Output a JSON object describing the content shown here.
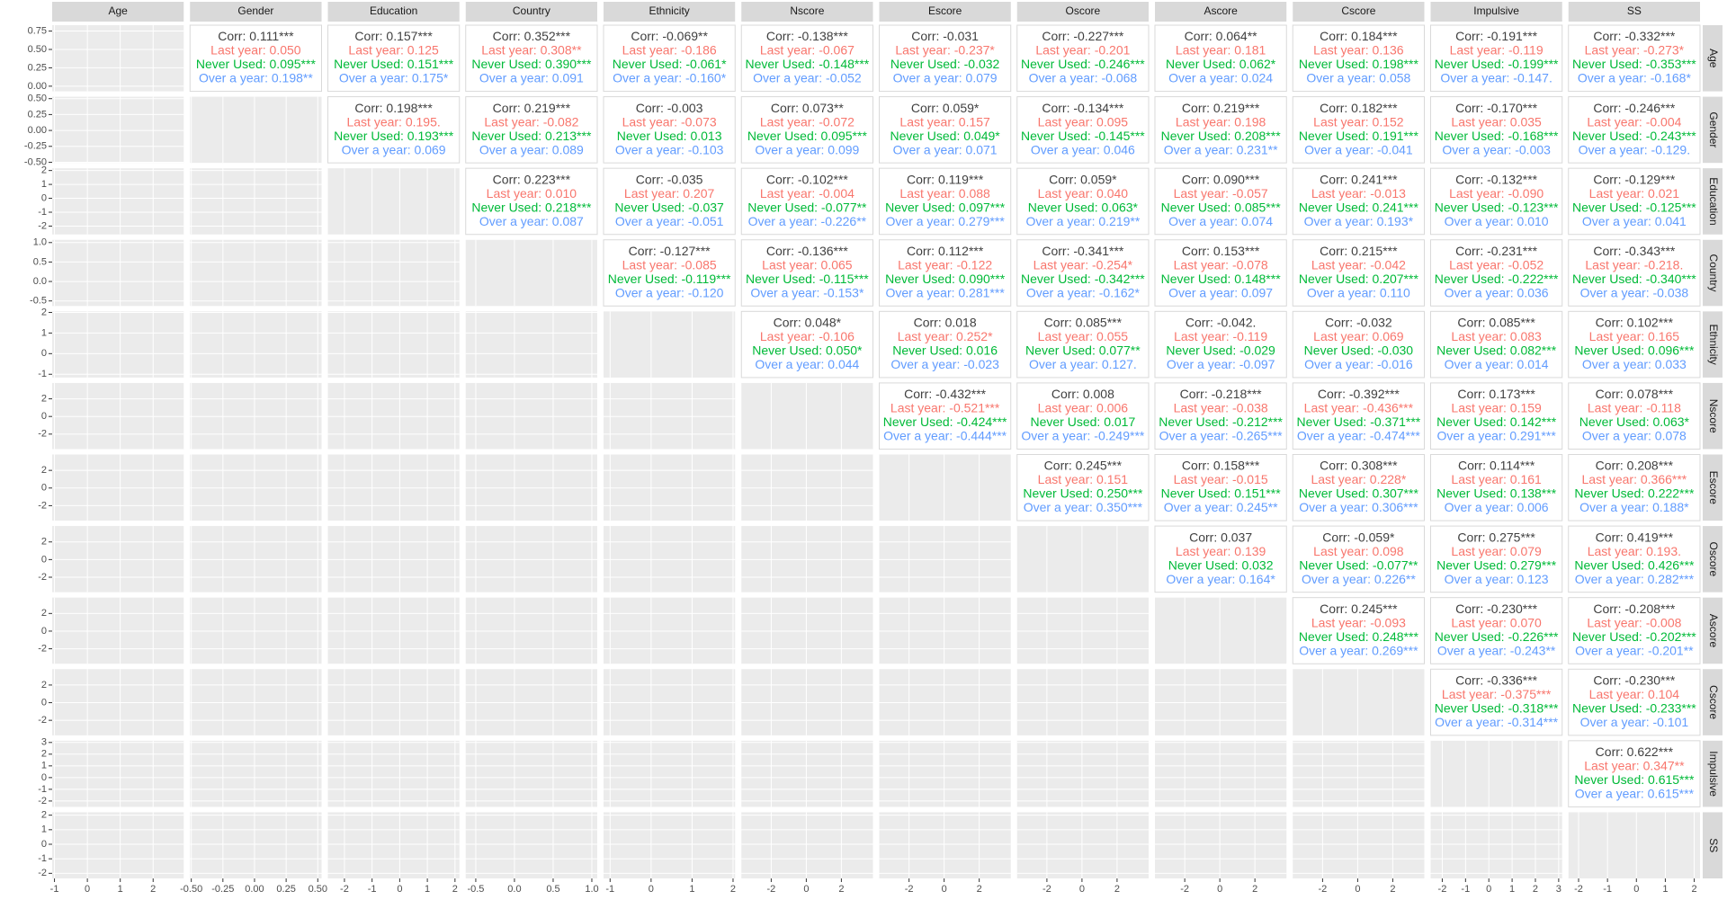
{
  "chart_data": {
    "type": "pairs",
    "line_colors": [
      "#404040",
      "#F8766D",
      "#00BA38",
      "#619CFF"
    ],
    "variables": [
      {
        "name": "Age",
        "lim": [
          -1.07,
          2.93
        ],
        "ticks": [
          -1,
          0,
          1,
          2
        ],
        "density_lim": [
          -0.07,
          0.83
        ],
        "density_ticks": [
          {
            "value": 0,
            "label": "0.00"
          },
          {
            "value": 0.25,
            "label": "0.25"
          },
          {
            "value": 0.5,
            "label": "0.50"
          },
          {
            "value": 0.75,
            "label": "0.75"
          }
        ]
      },
      {
        "name": "Gender",
        "lim": [
          -0.51,
          0.53
        ],
        "ticks": [
          {
            "value": -0.5,
            "label": "-0.50"
          },
          {
            "value": -0.25,
            "label": "-0.25"
          },
          {
            "value": 0,
            "label": "0.00"
          },
          {
            "value": 0.25,
            "label": "0.25"
          },
          {
            "value": 0.5,
            "label": "0.50"
          }
        ]
      },
      {
        "name": "Education",
        "lim": [
          -2.6,
          2.16
        ],
        "ticks": [
          -2,
          -1,
          0,
          1,
          2
        ]
      },
      {
        "name": "Country",
        "lim": [
          -0.63,
          1.07
        ],
        "ticks": [
          -0.5,
          {
            "value": 0,
            "label": "0.0"
          },
          0.5,
          {
            "value": 1,
            "label": "1.0"
          }
        ]
      },
      {
        "name": "Ethnicity",
        "lim": [
          -1.16,
          2.05
        ],
        "ticks": [
          -1,
          0,
          1,
          2
        ]
      },
      {
        "name": "Nscore",
        "lim": [
          -3.7,
          3.8
        ],
        "ticks": [
          -2,
          0,
          2
        ]
      },
      {
        "name": "Escore",
        "lim": [
          -3.7,
          3.8
        ],
        "ticks": [
          -2,
          0,
          2
        ]
      },
      {
        "name": "Oscore",
        "lim": [
          -3.7,
          3.8
        ],
        "ticks": [
          -2,
          0,
          2
        ]
      },
      {
        "name": "Ascore",
        "lim": [
          -3.7,
          3.8
        ],
        "ticks": [
          -2,
          0,
          2
        ]
      },
      {
        "name": "Cscore",
        "lim": [
          -3.7,
          3.8
        ],
        "ticks": [
          -2,
          0,
          2
        ]
      },
      {
        "name": "Impulsive",
        "lim": [
          -2.5,
          3.15
        ],
        "ticks": [
          -2,
          -1,
          0,
          1,
          2,
          3
        ]
      },
      {
        "name": "SS",
        "lim": [
          -2.35,
          2.2
        ],
        "ticks": [
          -2,
          -1,
          0,
          1,
          2
        ]
      }
    ],
    "upper": [
      [
        [
          "Corr: 0.111***",
          "Last year: 0.050",
          "Never Used: 0.095***",
          "Over a year: 0.198**"
        ],
        [
          "Corr: 0.157***",
          "Last year: 0.125",
          "Never Used: 0.151***",
          "Over a year: 0.175*"
        ],
        [
          "Corr: 0.352***",
          "Last year: 0.308**",
          "Never Used: 0.390***",
          "Over a year: 0.091"
        ],
        [
          "Corr: -0.069**",
          "Last year: -0.186",
          "Never Used: -0.061*",
          "Over a year: -0.160*"
        ],
        [
          "Corr: -0.138***",
          "Last year: -0.067",
          "Never Used: -0.148***",
          "Over a year: -0.052"
        ],
        [
          "Corr: -0.031",
          "Last year: -0.237*",
          "Never Used: -0.032",
          "Over a year: 0.079"
        ],
        [
          "Corr: -0.227***",
          "Last year: -0.201",
          "Never Used: -0.246***",
          "Over a year: -0.068"
        ],
        [
          "Corr: 0.064**",
          "Last year: 0.181",
          "Never Used: 0.062*",
          "Over a year: 0.024"
        ],
        [
          "Corr: 0.184***",
          "Last year: 0.136",
          "Never Used: 0.198***",
          "Over a year: 0.058"
        ],
        [
          "Corr: -0.191***",
          "Last year: -0.119",
          "Never Used: -0.199***",
          "Over a year: -0.147."
        ],
        [
          "Corr: -0.332***",
          "Last year: -0.273*",
          "Never Used: -0.353***",
          "Over a year: -0.168*"
        ]
      ],
      [
        [
          "Corr: 0.198***",
          "Last year: 0.195.",
          "Never Used: 0.193***",
          "Over a year: 0.069"
        ],
        [
          "Corr: 0.219***",
          "Last year: -0.082",
          "Never Used: 0.213***",
          "Over a year: 0.089"
        ],
        [
          "Corr: -0.003",
          "Last year: -0.073",
          "Never Used: 0.013",
          "Over a year: -0.103"
        ],
        [
          "Corr: 0.073**",
          "Last year: -0.072",
          "Never Used: 0.095***",
          "Over a year: 0.099"
        ],
        [
          "Corr: 0.059*",
          "Last year: 0.157",
          "Never Used: 0.049*",
          "Over a year: 0.071"
        ],
        [
          "Corr: -0.134***",
          "Last year: 0.095",
          "Never Used: -0.145***",
          "Over a year: 0.046"
        ],
        [
          "Corr: 0.219***",
          "Last year: 0.198",
          "Never Used: 0.208***",
          "Over a year: 0.231**"
        ],
        [
          "Corr: 0.182***",
          "Last year: 0.152",
          "Never Used: 0.191***",
          "Over a year: -0.041"
        ],
        [
          "Corr: -0.170***",
          "Last year: 0.035",
          "Never Used: -0.168***",
          "Over a year: -0.003"
        ],
        [
          "Corr: -0.246***",
          "Last year: -0.004",
          "Never Used: -0.243***",
          "Over a year: -0.129."
        ]
      ],
      [
        [
          "Corr: 0.223***",
          "Last year: 0.010",
          "Never Used: 0.218***",
          "Over a year: 0.087"
        ],
        [
          "Corr: -0.035",
          "Last year: 0.207",
          "Never Used: -0.037",
          "Over a year: -0.051"
        ],
        [
          "Corr: -0.102***",
          "Last year: -0.004",
          "Never Used: -0.077**",
          "Over a year: -0.226**"
        ],
        [
          "Corr: 0.119***",
          "Last year: 0.088",
          "Never Used: 0.097***",
          "Over a year: 0.279***"
        ],
        [
          "Corr: 0.059*",
          "Last year: 0.040",
          "Never Used: 0.063*",
          "Over a year: 0.219**"
        ],
        [
          "Corr: 0.090***",
          "Last year: -0.057",
          "Never Used: 0.085***",
          "Over a year: 0.074"
        ],
        [
          "Corr: 0.241***",
          "Last year: -0.013",
          "Never Used: 0.241***",
          "Over a year: 0.193*"
        ],
        [
          "Corr: -0.132***",
          "Last year: -0.090",
          "Never Used: -0.123***",
          "Over a year: 0.010"
        ],
        [
          "Corr: -0.129***",
          "Last year: 0.021",
          "Never Used: -0.125***",
          "Over a year: 0.041"
        ]
      ],
      [
        [
          "Corr: -0.127***",
          "Last year: -0.085",
          "Never Used: -0.119***",
          "Over a year: -0.120"
        ],
        [
          "Corr: -0.136***",
          "Last year: 0.065",
          "Never Used: -0.115***",
          "Over a year: -0.153*"
        ],
        [
          "Corr: 0.112***",
          "Last year: -0.122",
          "Never Used: 0.090***",
          "Over a year: 0.281***"
        ],
        [
          "Corr: -0.341***",
          "Last year: -0.254*",
          "Never Used: -0.342***",
          "Over a year: -0.162*"
        ],
        [
          "Corr: 0.153***",
          "Last year: -0.078",
          "Never Used: 0.148***",
          "Over a year: 0.097"
        ],
        [
          "Corr: 0.215***",
          "Last year: -0.042",
          "Never Used: 0.207***",
          "Over a year: 0.110"
        ],
        [
          "Corr: -0.231***",
          "Last year: -0.052",
          "Never Used: -0.222***",
          "Over a year: 0.036"
        ],
        [
          "Corr: -0.343***",
          "Last year: -0.218.",
          "Never Used: -0.340***",
          "Over a year: -0.038"
        ]
      ],
      [
        [
          "Corr: 0.048*",
          "Last year: -0.106",
          "Never Used: 0.050*",
          "Over a year: 0.044"
        ],
        [
          "Corr: 0.018",
          "Last year: 0.252*",
          "Never Used: 0.016",
          "Over a year: -0.023"
        ],
        [
          "Corr: 0.085***",
          "Last year: 0.055",
          "Never Used: 0.077**",
          "Over a year: 0.127."
        ],
        [
          "Corr: -0.042.",
          "Last year: -0.119",
          "Never Used: -0.029",
          "Over a year: -0.097"
        ],
        [
          "Corr: -0.032",
          "Last year: 0.069",
          "Never Used: -0.030",
          "Over a year: -0.016"
        ],
        [
          "Corr: 0.085***",
          "Last year: 0.083",
          "Never Used: 0.082***",
          "Over a year: 0.014"
        ],
        [
          "Corr: 0.102***",
          "Last year: 0.165",
          "Never Used: 0.096***",
          "Over a year: 0.033"
        ]
      ],
      [
        [
          "Corr: -0.432***",
          "Last year: -0.521***",
          "Never Used: -0.424***",
          "Over a year: -0.444***"
        ],
        [
          "Corr: 0.008",
          "Last year: 0.006",
          "Never Used: 0.017",
          "Over a year: -0.249***"
        ],
        [
          "Corr: -0.218***",
          "Last year: -0.038",
          "Never Used: -0.212***",
          "Over a year: -0.265***"
        ],
        [
          "Corr: -0.392***",
          "Last year: -0.436***",
          "Never Used: -0.371***",
          "Over a year: -0.474***"
        ],
        [
          "Corr: 0.173***",
          "Last year: 0.159",
          "Never Used: 0.142***",
          "Over a year: 0.291***"
        ],
        [
          "Corr: 0.078***",
          "Last year: -0.118",
          "Never Used: 0.063*",
          "Over a year: 0.078"
        ]
      ],
      [
        [
          "Corr: 0.245***",
          "Last year: 0.151",
          "Never Used: 0.250***",
          "Over a year: 0.350***"
        ],
        [
          "Corr: 0.158***",
          "Last year: -0.015",
          "Never Used: 0.151***",
          "Over a year: 0.245**"
        ],
        [
          "Corr: 0.308***",
          "Last year: 0.228*",
          "Never Used: 0.307***",
          "Over a year: 0.306***"
        ],
        [
          "Corr: 0.114***",
          "Last year: 0.161",
          "Never Used: 0.138***",
          "Over a year: 0.006"
        ],
        [
          "Corr: 0.208***",
          "Last year: 0.366***",
          "Never Used: 0.222***",
          "Over a year: 0.188*"
        ]
      ],
      [
        [
          "Corr: 0.037",
          "Last year: 0.139",
          "Never Used: 0.032",
          "Over a year: 0.164*"
        ],
        [
          "Corr: -0.059*",
          "Last year: 0.098",
          "Never Used: -0.077**",
          "Over a year: 0.226**"
        ],
        [
          "Corr: 0.275***",
          "Last year: 0.079",
          "Never Used: 0.279***",
          "Over a year: 0.123"
        ],
        [
          "Corr: 0.419***",
          "Last year: 0.193.",
          "Never Used: 0.426***",
          "Over a year: 0.282***"
        ]
      ],
      [
        [
          "Corr: 0.245***",
          "Last year: -0.093",
          "Never Used: 0.248***",
          "Over a year: 0.269***"
        ],
        [
          "Corr: -0.230***",
          "Last year: 0.070",
          "Never Used: -0.226***",
          "Over a year: -0.243**"
        ],
        [
          "Corr: -0.208***",
          "Last year: -0.008",
          "Never Used: -0.202***",
          "Over a year: -0.201**"
        ]
      ],
      [
        [
          "Corr: -0.336***",
          "Last year: -0.375***",
          "Never Used: -0.318***",
          "Over a year: -0.314***"
        ],
        [
          "Corr: -0.230***",
          "Last year: 0.104",
          "Never Used: -0.233***",
          "Over a year: -0.101"
        ]
      ],
      [
        [
          "Corr: 0.622***",
          "Last year: 0.347**",
          "Never Used: 0.615***",
          "Over a year: 0.615***"
        ]
      ],
      []
    ]
  }
}
